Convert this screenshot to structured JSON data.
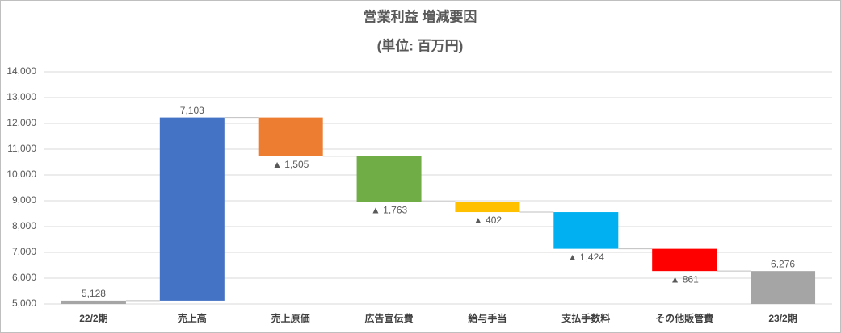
{
  "chart_data": {
    "type": "waterfall",
    "title": "営業利益 増減要因",
    "subtitle": "(単位: 百万円)",
    "categories": [
      "22/2期",
      "売上高",
      "売上原価",
      "広告宣伝費",
      "給与手当",
      "支払手数料",
      "その他販管費",
      "23/2期"
    ],
    "values": [
      5128,
      7103,
      -1505,
      -1763,
      -402,
      -1424,
      -861,
      6276
    ],
    "value_labels": [
      "5,128",
      "7,103",
      "▲ 1,505",
      "▲ 1,763",
      "▲ 402",
      "▲ 1,424",
      "▲ 861",
      "6,276"
    ],
    "is_total": [
      true,
      false,
      false,
      false,
      false,
      false,
      false,
      true
    ],
    "colors": [
      "#a5a5a5",
      "#4472c4",
      "#ed7d31",
      "#70ad47",
      "#ffc000",
      "#00b0f0",
      "#ff0000",
      "#a5a5a5"
    ],
    "ylim": [
      5000,
      14000
    ],
    "yticks": [
      {
        "value": 5000,
        "label": "5,000"
      },
      {
        "value": 6000,
        "label": "6,000"
      },
      {
        "value": 7000,
        "label": "7,000"
      },
      {
        "value": 8000,
        "label": "8,000"
      },
      {
        "value": 9000,
        "label": "9,000"
      },
      {
        "value": 10000,
        "label": "10,000"
      },
      {
        "value": 11000,
        "label": "11,000"
      },
      {
        "value": 12000,
        "label": "12,000"
      },
      {
        "value": 13000,
        "label": "13,000"
      },
      {
        "value": 14000,
        "label": "14,000"
      }
    ],
    "grid": true
  }
}
